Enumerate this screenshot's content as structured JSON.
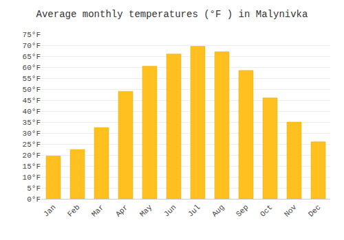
{
  "chart_data": {
    "type": "bar",
    "title": "Average monthly temperatures (°F ) in Malynivka",
    "categories": [
      "Jan",
      "Feb",
      "Mar",
      "Apr",
      "May",
      "Jun",
      "Jul",
      "Aug",
      "Sep",
      "Oct",
      "Nov",
      "Dec"
    ],
    "values": [
      19.5,
      22.5,
      32.5,
      49,
      60.5,
      66,
      69.5,
      67,
      58.5,
      46,
      35,
      26
    ],
    "color": "#FFC020",
    "ylim": [
      0,
      75
    ],
    "yticks": [
      {
        "value": 0,
        "label": "0°F"
      },
      {
        "value": 5,
        "label": "5°F"
      },
      {
        "value": 10,
        "label": "10°F"
      },
      {
        "value": 15,
        "label": "15°F"
      },
      {
        "value": 20,
        "label": "20°F"
      },
      {
        "value": 25,
        "label": "25°F"
      },
      {
        "value": 30,
        "label": "30°F"
      },
      {
        "value": 35,
        "label": "35°F"
      },
      {
        "value": 40,
        "label": "40°F"
      },
      {
        "value": 45,
        "label": "45°F"
      },
      {
        "value": 50,
        "label": "50°F"
      },
      {
        "value": 55,
        "label": "55°F"
      },
      {
        "value": 60,
        "label": "60°F"
      },
      {
        "value": 65,
        "label": "65°F"
      },
      {
        "value": 70,
        "label": "70°F"
      },
      {
        "value": 75,
        "label": "75°F"
      }
    ],
    "grid": true
  }
}
